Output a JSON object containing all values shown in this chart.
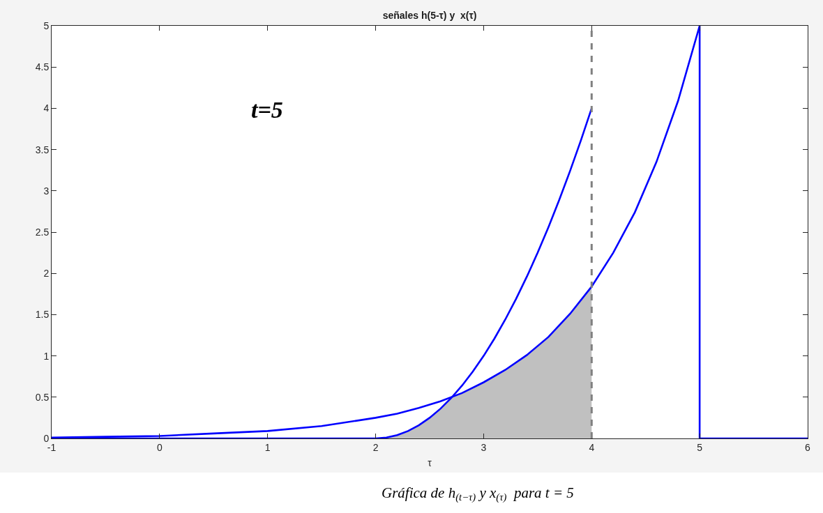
{
  "chart_data": {
    "type": "line",
    "title": "señales h(5-τ) y  x(τ)",
    "xlabel": "τ",
    "annotations": [
      "t=5",
      "Gráfica de h$_{(t−τ)}$ y x$_{(τ)}$  para t = 5"
    ],
    "xlim": [
      -1,
      6
    ],
    "ylim": [
      0,
      5
    ],
    "xticks": [
      -1,
      0,
      1,
      2,
      3,
      4,
      5,
      6
    ],
    "yticks": [
      0,
      0.5,
      1,
      1.5,
      2,
      2.5,
      3,
      3.5,
      4,
      4.5,
      5
    ],
    "ref_lines": [
      {
        "axis": "x",
        "value": 4,
        "color": "#808080",
        "line_style": "dashed"
      }
    ],
    "series": [
      {
        "type": "area",
        "color": "#c0c0c0",
        "x": [
          2,
          2.1,
          2.2,
          2.3,
          2.4,
          2.5,
          2.6,
          2.7,
          2.8,
          3,
          3.2,
          3.4,
          3.6,
          3.8,
          4
        ],
        "values": [
          0,
          0.01,
          0.04,
          0.09,
          0.16,
          0.25,
          0.36,
          0.49,
          0.55,
          0.68,
          0.83,
          1.01,
          1.23,
          1.51,
          1.84
        ]
      },
      {
        "color": "#0000ff",
        "x": [
          -1,
          -0.5,
          0,
          0.5,
          1,
          1.5,
          2,
          2.2,
          2.4,
          2.6,
          2.8,
          3,
          3.2,
          3.4,
          3.6,
          3.8,
          4,
          4.2,
          4.4,
          4.6,
          4.8,
          5,
          5,
          6
        ],
        "values": [
          0.01,
          0.02,
          0.03,
          0.06,
          0.09,
          0.15,
          0.25,
          0.3,
          0.37,
          0.45,
          0.55,
          0.68,
          0.83,
          1.01,
          1.23,
          1.51,
          1.84,
          2.25,
          2.74,
          3.35,
          4.09,
          5,
          0,
          0
        ]
      },
      {
        "color": "#0000ff",
        "x": [
          -1,
          2,
          2.1,
          2.2,
          2.3,
          2.4,
          2.5,
          2.6,
          2.7,
          2.8,
          2.9,
          3,
          3.1,
          3.2,
          3.3,
          3.4,
          3.5,
          3.6,
          3.7,
          3.8,
          3.9,
          4
        ],
        "values": [
          0,
          0,
          0.01,
          0.04,
          0.09,
          0.16,
          0.25,
          0.36,
          0.49,
          0.64,
          0.81,
          1,
          1.21,
          1.44,
          1.69,
          1.96,
          2.25,
          2.56,
          2.89,
          3.24,
          3.61,
          4
        ]
      }
    ]
  }
}
